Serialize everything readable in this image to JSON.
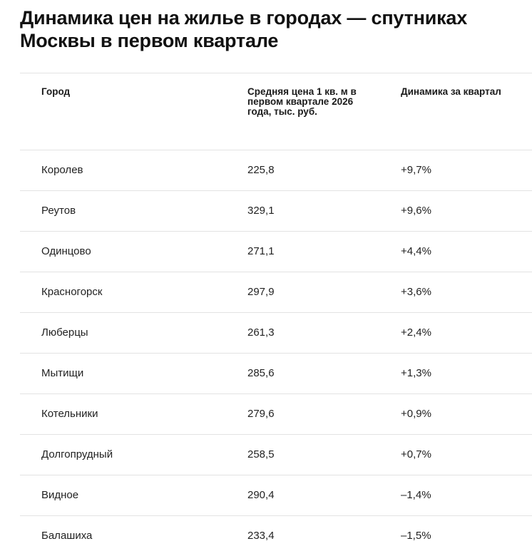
{
  "title": "Динамика цен на жилье в городах — спутниках Москвы в первом квартале",
  "table": {
    "headers": {
      "city": "Город",
      "price": "Средняя цена 1 кв. м в первом квартале 2026 года, тыс. руб.",
      "dynamics": "Динамика за квартал"
    },
    "rows": [
      {
        "city": "Королев",
        "price": "225,8",
        "dynamics": "+9,7%"
      },
      {
        "city": "Реутов",
        "price": "329,1",
        "dynamics": "+9,6%"
      },
      {
        "city": "Одинцово",
        "price": "271,1",
        "dynamics": "+4,4%"
      },
      {
        "city": "Красногорск",
        "price": "297,9",
        "dynamics": "+3,6%"
      },
      {
        "city": "Люберцы",
        "price": "261,3",
        "dynamics": "+2,4%"
      },
      {
        "city": "Мытищи",
        "price": "285,6",
        "dynamics": "+1,3%"
      },
      {
        "city": "Котельники",
        "price": "279,6",
        "dynamics": "+0,9%"
      },
      {
        "city": "Долгопрудный",
        "price": "258,5",
        "dynamics": "+0,7%"
      },
      {
        "city": "Видное",
        "price": "290,4",
        "dynamics": "–1,4%"
      },
      {
        "city": "Балашиха",
        "price": "233,4",
        "dynamics": "–1,5%"
      }
    ]
  }
}
